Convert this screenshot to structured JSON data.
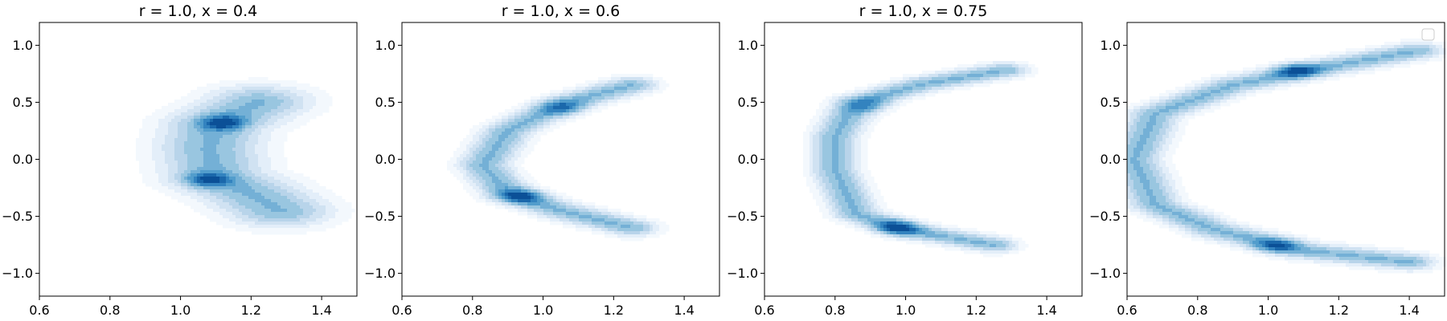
{
  "chart_data": [
    {
      "type": "contour",
      "title": "r = 1.0, x = 0.4",
      "xlim": [
        0.6,
        1.5
      ],
      "ylim": [
        -1.2,
        1.2
      ],
      "xticks": [
        0.6,
        0.8,
        1.0,
        1.2,
        1.4
      ],
      "yticks": [
        1.0,
        0.5,
        0.0,
        -0.5,
        -1.0
      ],
      "xtick_labels": [
        "0.6",
        "0.8",
        "1.0",
        "1.2",
        "1.4"
      ],
      "ytick_labels": [
        "1.0",
        "0.5",
        "0.0",
        "−0.5",
        "−1.0"
      ],
      "colormap": "Blues",
      "legend": "none",
      "spine": [
        [
          1.28,
          -0.45
        ],
        [
          1.2,
          -0.3
        ],
        [
          1.1,
          -0.15
        ],
        [
          1.08,
          0.1
        ],
        [
          1.1,
          0.3
        ],
        [
          1.22,
          0.5
        ]
      ],
      "spread": 0.11,
      "peaks": [
        [
          1.12,
          0.32,
          1.0
        ],
        [
          1.08,
          -0.18,
          0.95
        ]
      ]
    },
    {
      "type": "contour",
      "title": "r = 1.0, x = 0.6",
      "xlim": [
        0.6,
        1.5
      ],
      "ylim": [
        -1.2,
        1.2
      ],
      "xticks": [
        0.6,
        0.8,
        1.0,
        1.2,
        1.4
      ],
      "yticks": [
        1.0,
        0.5,
        0.0,
        -0.5,
        -1.0
      ],
      "xtick_labels": [
        "0.6",
        "0.8",
        "1.0",
        "1.2",
        "1.4"
      ],
      "ytick_labels": [
        "1.0",
        "0.5",
        "0.0",
        "−0.5",
        "−1.0"
      ],
      "colormap": "Blues",
      "legend": "none",
      "spine": [
        [
          1.25,
          -0.6
        ],
        [
          1.05,
          -0.45
        ],
        [
          0.9,
          -0.3
        ],
        [
          0.83,
          -0.05
        ],
        [
          0.9,
          0.25
        ],
        [
          1.05,
          0.48
        ],
        [
          1.25,
          0.65
        ]
      ],
      "spread": 0.055,
      "peaks": [
        [
          0.94,
          -0.32,
          1.0
        ],
        [
          1.06,
          0.45,
          0.7
        ]
      ]
    },
    {
      "type": "contour",
      "title": "r = 1.0, x = 0.75",
      "xlim": [
        0.6,
        1.5
      ],
      "ylim": [
        -1.2,
        1.2
      ],
      "xticks": [
        0.6,
        0.8,
        1.0,
        1.2,
        1.4
      ],
      "yticks": [
        1.0,
        0.5,
        0.0,
        -0.5,
        -1.0
      ],
      "xtick_labels": [
        "0.6",
        "0.8",
        "1.0",
        "1.2",
        "1.4"
      ],
      "ytick_labels": [
        "1.0",
        "0.5",
        "0.0",
        "−0.5",
        "−1.0"
      ],
      "colormap": "Blues",
      "legend": "none",
      "spine": [
        [
          1.25,
          -0.75
        ],
        [
          1.0,
          -0.62
        ],
        [
          0.86,
          -0.48
        ],
        [
          0.8,
          -0.1
        ],
        [
          0.8,
          0.2
        ],
        [
          0.86,
          0.5
        ],
        [
          1.05,
          0.66
        ],
        [
          1.28,
          0.78
        ]
      ],
      "spread": 0.05,
      "peaks": [
        [
          0.98,
          -0.6,
          1.0
        ],
        [
          0.9,
          0.47,
          0.7
        ]
      ]
    },
    {
      "type": "contour",
      "title": "",
      "xlim": [
        0.6,
        1.5
      ],
      "ylim": [
        -1.2,
        1.2
      ],
      "xticks": [
        0.6,
        0.8,
        1.0,
        1.2,
        1.4
      ],
      "yticks": [
        1.0,
        0.5,
        0.0,
        -0.5,
        -1.0
      ],
      "xtick_labels": [
        "0.6",
        "0.8",
        "1.0",
        "1.2",
        "1.4"
      ],
      "ytick_labels": [
        "1.0",
        "0.5",
        "0.0",
        "−0.5",
        "−1.0"
      ],
      "colormap": "Blues",
      "legend": "top-right, empty",
      "spine": [
        [
          1.4,
          -0.9
        ],
        [
          1.1,
          -0.8
        ],
        [
          0.85,
          -0.62
        ],
        [
          0.68,
          -0.4
        ],
        [
          0.62,
          0.0
        ],
        [
          0.68,
          0.4
        ],
        [
          0.9,
          0.65
        ],
        [
          1.15,
          0.8
        ],
        [
          1.42,
          0.95
        ]
      ],
      "spread": 0.055,
      "peaks": [
        [
          1.08,
          0.78,
          1.0
        ],
        [
          1.02,
          -0.76,
          0.85
        ]
      ]
    }
  ]
}
